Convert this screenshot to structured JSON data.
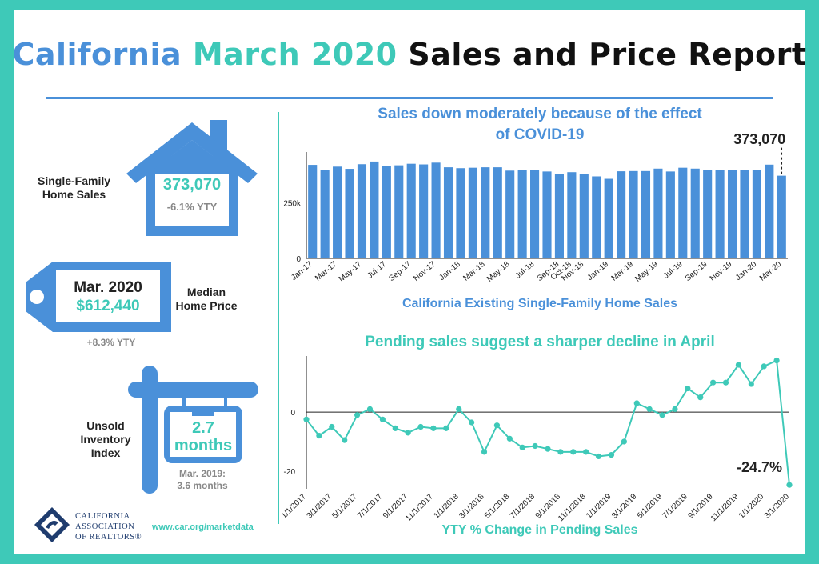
{
  "header": {
    "title_part1": "California",
    "title_part2": "March 2020",
    "title_part3": "Sales and Price Report"
  },
  "colors": {
    "blue": "#4a90d9",
    "teal": "#3ec9b8",
    "navy": "#1f3c6e",
    "gray": "#888888"
  },
  "left_panel": {
    "sales": {
      "label": "Single-Family Home Sales",
      "value": "373,070",
      "change": "-6.1% YTY"
    },
    "price": {
      "label": "Median Home Price",
      "period": "Mar. 2020",
      "value": "$612,440",
      "change": "+8.3% YTY"
    },
    "inventory": {
      "label": "Unsold Inventory Index",
      "value_line1": "2.7",
      "value_line2": "months",
      "prior_line1": "Mar. 2019:",
      "prior_line2": "3.6 months"
    }
  },
  "footer": {
    "logo_line1": "CALIFORNIA",
    "logo_line2": "ASSOCIATION",
    "logo_line3": "OF REALTORS®",
    "url": "www.car.org/marketdata"
  },
  "chart_data": [
    {
      "type": "bar",
      "title_line1": "Sales down moderately because of the effect",
      "title_line2": "of COVID-19",
      "xlabel": "California Existing Single-Family Home Sales",
      "ylabel": "",
      "y_ticks": [
        {
          "value": 0,
          "label": "0"
        },
        {
          "value": 250000,
          "label": "250k"
        }
      ],
      "ylim": [
        0,
        480000
      ],
      "annotation": "373,070",
      "categories": [
        "Jan-17",
        "Feb-17",
        "Mar-17",
        "Apr-17",
        "May-17",
        "Jun-17",
        "Jul-17",
        "Aug-17",
        "Sep-17",
        "Oct-17",
        "Nov-17",
        "Dec-17",
        "Jan-18",
        "Feb-18",
        "Mar-18",
        "Apr-18",
        "May-18",
        "Jun-18",
        "Jul-18",
        "Aug-18",
        "Sep-18",
        "Oct-18",
        "Nov-18",
        "Dec-18",
        "Jan-19",
        "Feb-19",
        "Mar-19",
        "Apr-19",
        "May-19",
        "Jun-19",
        "Jul-19",
        "Aug-19",
        "Sep-19",
        "Oct-19",
        "Nov-19",
        "Dec-19",
        "Jan-20",
        "Feb-20",
        "Mar-20"
      ],
      "tick_labels": [
        "Jan-17",
        "Mar-17",
        "May-17",
        "Jul-17",
        "Sep-17",
        "Nov-17",
        "Jan-18",
        "Mar-18",
        "May-18",
        "Jul-18",
        "Sep-18",
        "Oct-18",
        "Nov-18",
        "Jan-19",
        "Mar-19",
        "May-19",
        "Jul-19",
        "Sep-19",
        "Nov-19",
        "Jan-20",
        "Mar-20"
      ],
      "values": [
        422000,
        400000,
        414000,
        404000,
        425000,
        437000,
        418000,
        420000,
        427000,
        424000,
        432000,
        411000,
        407000,
        409000,
        411000,
        411000,
        396000,
        398000,
        400000,
        392000,
        381000,
        389000,
        379000,
        370000,
        359000,
        393000,
        394000,
        394000,
        405000,
        392000,
        409000,
        405000,
        400000,
        400000,
        397000,
        399000,
        398000,
        423000,
        373070
      ]
    },
    {
      "type": "line",
      "title": "Pending sales suggest a sharper decline in April",
      "xlabel": "YTY % Change in Pending Sales",
      "ylabel": "",
      "ylim": [
        -26,
        19
      ],
      "y_ticks": [
        {
          "value": 0,
          "label": "0"
        },
        {
          "value": -20,
          "label": "-20"
        }
      ],
      "annotation": "-24.7%",
      "tick_labels": [
        "1/1/2017",
        "3/1/2017",
        "5/1/2017",
        "7/1/2017",
        "9/1/2017",
        "11/1/2017",
        "1/1/2018",
        "3/1/2018",
        "5/1/2018",
        "7/1/2018",
        "9/1/2018",
        "11/1/2018",
        "1/1/2019",
        "3/1/2019",
        "5/1/2019",
        "7/1/2019",
        "9/1/2019",
        "11/1/2019",
        "1/1/2020",
        "3/1/2020"
      ],
      "x": [
        "1/1/2017",
        "2/1/2017",
        "3/1/2017",
        "4/1/2017",
        "5/1/2017",
        "6/1/2017",
        "7/1/2017",
        "8/1/2017",
        "9/1/2017",
        "10/1/2017",
        "11/1/2017",
        "12/1/2017",
        "1/1/2018",
        "2/1/2018",
        "3/1/2018",
        "4/1/2018",
        "5/1/2018",
        "6/1/2018",
        "7/1/2018",
        "8/1/2018",
        "9/1/2018",
        "10/1/2018",
        "11/1/2018",
        "12/1/2018",
        "1/1/2019",
        "2/1/2019",
        "3/1/2019",
        "4/1/2019",
        "5/1/2019",
        "6/1/2019",
        "7/1/2019",
        "8/1/2019",
        "9/1/2019",
        "10/1/2019",
        "11/1/2019",
        "12/1/2019",
        "1/1/2020",
        "2/1/2020",
        "3/1/2020"
      ],
      "values": [
        -2.5,
        -8,
        -5,
        -9.5,
        -1,
        1,
        -2.5,
        -5.5,
        -7,
        -5,
        -5.5,
        -5.5,
        1,
        -3.5,
        -13.5,
        -4.5,
        -9,
        -12,
        -11.5,
        -12.5,
        -13.5,
        -13.5,
        -13.5,
        -15,
        -14.5,
        -10,
        3,
        1,
        -1,
        1,
        8,
        5,
        10,
        10,
        16,
        9.5,
        15.5,
        17.5,
        -24.7
      ]
    }
  ]
}
